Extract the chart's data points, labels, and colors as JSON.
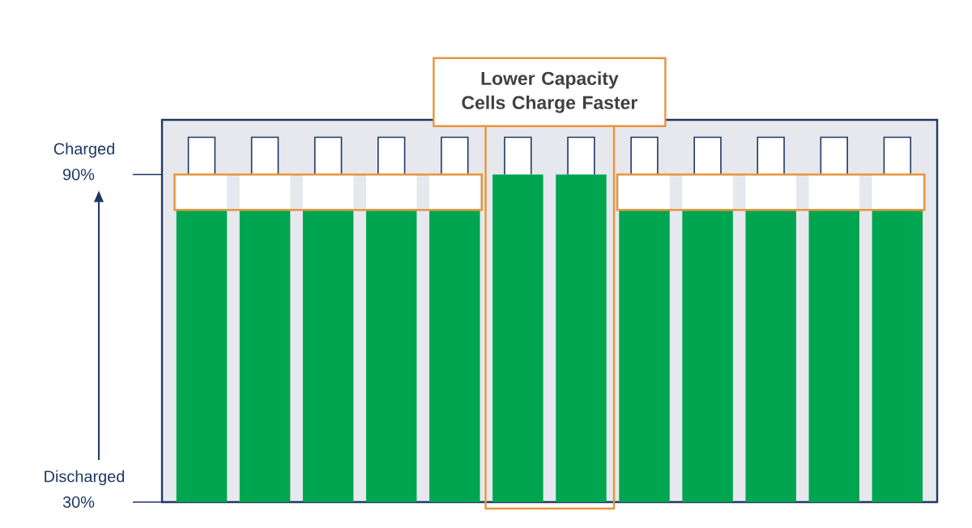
{
  "chart_data": {
    "type": "bar",
    "categories": [
      null,
      null,
      null,
      null,
      null,
      null,
      null,
      null,
      null,
      null,
      null,
      null
    ],
    "series": [
      {
        "color": "#00a54f",
        "values": [
          83.5,
          83.5,
          83.5,
          83.5,
          83.5,
          90,
          90,
          83.5,
          83.5,
          83.5,
          83.5,
          83.5
        ]
      }
    ],
    "ylim": [
      30,
      100
    ],
    "yticks": [
      {
        "value": 30,
        "label": "30%"
      },
      {
        "value": 90,
        "label": "90%"
      }
    ],
    "annotations": [
      "Lower Capacity Cells Charge Faster",
      "Charged",
      "Discharged"
    ]
  }
}
